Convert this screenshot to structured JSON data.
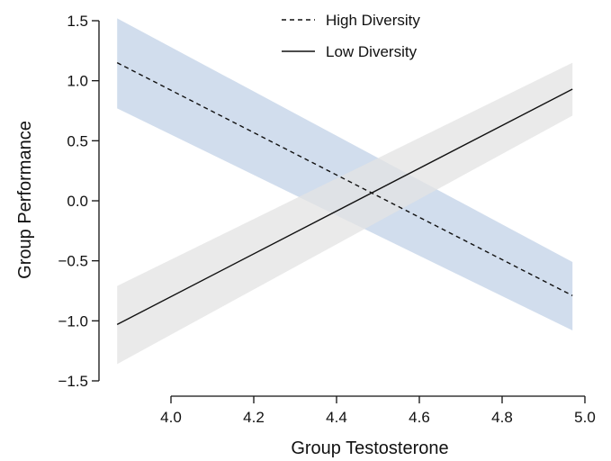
{
  "chart_data": {
    "type": "line",
    "title": "",
    "xlabel": "Group Testosterone",
    "ylabel": "Group Performance",
    "xlim": [
      3.87,
      4.97
    ],
    "ylim": [
      -1.5,
      1.5
    ],
    "xticks": [
      4.0,
      4.2,
      4.4,
      4.6,
      4.8,
      5.0
    ],
    "xtick_labels": [
      "4.0",
      "4.2",
      "4.4",
      "4.6",
      "4.8",
      "5.0"
    ],
    "yticks": [
      1.5,
      1.0,
      0.5,
      0.0,
      -0.5,
      -1.0,
      -1.5
    ],
    "ytick_labels": [
      "1.5",
      "1.0",
      "0.5",
      "0.0",
      "−0.5",
      "−1.0",
      "−1.5"
    ],
    "legend_position": "top-center",
    "grid": false,
    "series": [
      {
        "name": "High Diversity",
        "line_style": "dashed",
        "color": "#111111",
        "band_color": "#c9d7ea",
        "x": [
          3.87,
          4.97
        ],
        "y": [
          1.15,
          -0.79
        ],
        "ci_lower": [
          0.77,
          -1.08
        ],
        "ci_upper": [
          1.52,
          -0.51
        ]
      },
      {
        "name": "Low Diversity",
        "line_style": "solid",
        "color": "#111111",
        "band_color": "#e3e3e3",
        "x": [
          3.87,
          4.97
        ],
        "y": [
          -1.03,
          0.93
        ],
        "ci_lower": [
          -1.36,
          0.71
        ],
        "ci_upper": [
          -0.71,
          1.15
        ]
      }
    ]
  }
}
